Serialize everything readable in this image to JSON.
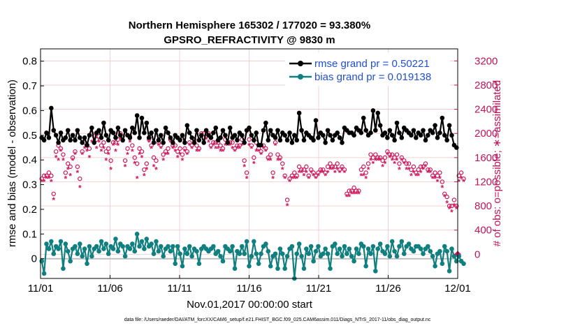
{
  "chart_data": {
    "type": "line",
    "title_line1": "Northern Hemisphere 165302 / 177020 = 93.380%",
    "title_line2": "GPSRO_REFRACTIVITY @ 9830 m",
    "xlabel": "Nov.01,2017 00:00:00 start",
    "ylabel_left": "rmse and bias (model - observation)",
    "ylabel_right": "# of obs: o=possible; ∗=assimilated",
    "footer": "data file: /Users/raeder/DAI/ATM_forcXX/CAM6_setup/f.e21.FHIST_BGC.f09_025.CAM6assim.011/Diags_NTrS_2017-11/obs_diag_output.nc",
    "x_ticks": [
      "11/01",
      "11/06",
      "11/11",
      "11/16",
      "11/21",
      "11/26",
      "12/01"
    ],
    "x_tick_days": [
      0,
      5,
      10,
      15,
      20,
      25,
      30
    ],
    "x_range": [
      0,
      30
    ],
    "ylim_left": [
      -0.08,
      0.85
    ],
    "yticks_left": [
      "0",
      "0.1",
      "0.2",
      "0.3",
      "0.4",
      "0.5",
      "0.6",
      "0.7",
      "0.8"
    ],
    "yticks_left_values": [
      0,
      0.1,
      0.2,
      0.3,
      0.4,
      0.5,
      0.6,
      0.7,
      0.8
    ],
    "ylim_right": [
      -400,
      3400
    ],
    "yticks_right": [
      "0",
      "400",
      "800",
      "1200",
      "1600",
      "2000",
      "2400",
      "2800",
      "3200"
    ],
    "yticks_right_values": [
      0,
      400,
      800,
      1200,
      1600,
      2000,
      2400,
      2800,
      3200
    ],
    "legend": [
      {
        "name": "rmse grand pr = 0.50221",
        "color": "#000000"
      },
      {
        "name": "bias grand pr = 0.019138",
        "color": "#0f7f7f"
      }
    ],
    "colors": {
      "rmse": "#000000",
      "bias": "#0f7f7f",
      "obs": "#d0145a",
      "zero_line": "#bdbdbd"
    },
    "series": [
      {
        "name": "rmse",
        "values": [
          0.49,
          0.48,
          0.51,
          0.49,
          0.61,
          0.52,
          0.5,
          0.47,
          0.51,
          0.48,
          0.49,
          0.52,
          0.48,
          0.5,
          0.48,
          0.52,
          0.49,
          0.47,
          0.49,
          0.46,
          0.5,
          0.53,
          0.47,
          0.51,
          0.52,
          0.49,
          0.55,
          0.5,
          0.48,
          0.52,
          0.51,
          0.49,
          0.53,
          0.5,
          0.48,
          0.52,
          0.5,
          0.49,
          0.53,
          0.51,
          0.58,
          0.49,
          0.57,
          0.51,
          0.55,
          0.49,
          0.51,
          0.47,
          0.52,
          0.48,
          0.5,
          0.47,
          0.53,
          0.51,
          0.49,
          0.47,
          0.5,
          0.49,
          0.48,
          0.5,
          0.47,
          0.54,
          0.51,
          0.49,
          0.47,
          0.52,
          0.48,
          0.5,
          0.47,
          0.52,
          0.5,
          0.49,
          0.51,
          0.53,
          0.48,
          0.49,
          0.52,
          0.5,
          0.47,
          0.53,
          0.49,
          0.5,
          0.48,
          0.51,
          0.5,
          0.47,
          0.52,
          0.53,
          0.5,
          0.48,
          0.51,
          0.46,
          0.46,
          0.52,
          0.55,
          0.48,
          0.52,
          0.5,
          0.49,
          0.52,
          0.48,
          0.51,
          0.5,
          0.48,
          0.51,
          0.47,
          0.5,
          0.48,
          0.59,
          0.52,
          0.48,
          0.51,
          0.5,
          0.49,
          0.48,
          0.56,
          0.49,
          0.51,
          0.5,
          0.47,
          0.52,
          0.5,
          0.48,
          0.5,
          0.51,
          0.49,
          0.47,
          0.53,
          0.52,
          0.51,
          0.51,
          0.5,
          0.53,
          0.52,
          0.51,
          0.57,
          0.52,
          0.5,
          0.51,
          0.6,
          0.52,
          0.59,
          0.54,
          0.5,
          0.51,
          0.49,
          0.52,
          0.5,
          0.48,
          0.55,
          0.51,
          0.49,
          0.53,
          0.52,
          0.51,
          0.5,
          0.52,
          0.49,
          0.51,
          0.5,
          0.52,
          0.48,
          0.5,
          0.52,
          0.51,
          0.54,
          0.49,
          0.51,
          0.57,
          0.5,
          0.48,
          0.54,
          0.5,
          0.46,
          0.45
        ]
      },
      {
        "name": "bias",
        "values": [
          -0.01,
          -0.06,
          0.06,
          0.04,
          0.07,
          0.02,
          0.05,
          0.04,
          0.07,
          -0.04,
          0.06,
          0.03,
          -0.01,
          0.04,
          0.05,
          0.02,
          0.06,
          0.01,
          0.04,
          -0.02,
          0.05,
          0.01,
          0.04,
          0.05,
          0.03,
          0.07,
          0.04,
          0.06,
          0.02,
          0.05,
          0.04,
          0.08,
          0.03,
          0.06,
          0.05,
          0.01,
          0.05,
          0.04,
          0.06,
          0.03,
          0.1,
          0.05,
          0.07,
          0.04,
          0.08,
          0.05,
          0.06,
          0.02,
          0.07,
          0.03,
          0.05,
          0.01,
          0.04,
          0.05,
          0.03,
          0.05,
          -0.02,
          0.05,
          0.02,
          -0.03,
          0.04,
          0.02,
          0.05,
          0.01,
          0.04,
          0.03,
          -0.02,
          0.04,
          0.05,
          0.04,
          0.03,
          0.04,
          0.05,
          0.02,
          0.03,
          0.01,
          -0.01,
          0.05,
          0.04,
          0.03,
          0.05,
          -0.04,
          0.03,
          0.02,
          0.05,
          0.02,
          0.07,
          -0.03,
          0.01,
          0.07,
          0.02,
          -0.02,
          0.02,
          0.05,
          0.06,
          0.03,
          -0.03,
          0.01,
          0.02,
          -0.04,
          0.04,
          0.02,
          -0.04,
          0.01,
          0.04,
          0.05,
          -0.08,
          0.02,
          0.06,
          0.01,
          -0.04,
          0.04,
          0.02,
          0.05,
          -0.01,
          0.03,
          0.05,
          0.01,
          0.02,
          0.04,
          0.02,
          -0.04,
          0.05,
          0.06,
          0.02,
          0.04,
          0.01,
          0.05,
          0.02,
          0.04,
          0.01,
          -0.01,
          0.04,
          0.02,
          0.06,
          0.05,
          -0.03,
          0.04,
          0.02,
          0.05,
          -0.05,
          0.04,
          0.06,
          0.03,
          0.02,
          0.05,
          0.01,
          0.07,
          0.03,
          0.01,
          0.05,
          0.07,
          0.02,
          0.05,
          0.06,
          0.04,
          0.03,
          0.05,
          0.05,
          0.04,
          0.02,
          0.04,
          0.05,
          0.03,
          0.01,
          -0.03,
          0.02,
          0.03,
          -0.02,
          0.05,
          0.03,
          -0.05,
          0.04,
          0.01,
          -0.01,
          0.01,
          -0.01,
          -0.02
        ]
      },
      {
        "name": "obs possible",
        "values": [
          1250,
          1300,
          1300,
          1350,
          1300,
          1000,
          1700,
          1800,
          1750,
          1650,
          1350,
          1500,
          1450,
          1600,
          1700,
          1450,
          1250,
          1700,
          1850,
          1800,
          1750,
          2000,
          1950,
          1900,
          1950,
          1800,
          1850,
          1700,
          1750,
          1550,
          1850,
          1850,
          1900,
          2000,
          1950,
          1550,
          1750,
          1950,
          1800,
          1600,
          1500,
          1750,
          1700,
          1400,
          1500,
          1900,
          1800,
          1600,
          1550,
          1850,
          1800,
          1650,
          1700,
          1750,
          1900,
          1800,
          1800,
          1700,
          1750,
          1650,
          1750,
          1700,
          1850,
          1800,
          1900,
          1800,
          1750,
          2000,
          2000,
          1950,
          2000,
          1800,
          1850,
          1850,
          1850,
          1800,
          1750,
          1900,
          1850,
          1850,
          1850,
          1750,
          1800,
          1800,
          1900,
          1550,
          1350,
          1900,
          1800,
          1600,
          1850,
          1750,
          1700,
          1800,
          1750,
          1600,
          1650,
          1350,
          1850,
          1650,
          1600,
          1500,
          1300,
          900,
          1250,
          1300,
          1350,
          1300,
          1450,
          1400,
          1400,
          1450,
          1300,
          1400,
          1350,
          1300,
          1350,
          1400,
          1400,
          1350,
          1450,
          1500,
          1450,
          1450,
          1500,
          1400,
          1450,
          1400,
          1000,
          1050,
          1050,
          1100,
          1050,
          1050,
          1400,
          1450,
          1350,
          1500,
          1650,
          1600,
          1650,
          1600,
          1600,
          1550,
          1600,
          1700,
          1650,
          1650,
          1600,
          1650,
          1500,
          1600,
          1550,
          1500,
          1500,
          1400,
          1450,
          1350,
          1400,
          1450,
          1450,
          1500,
          1400,
          1400,
          1300,
          1350,
          1300,
          1350,
          1200,
          1000,
          950,
          800,
          800,
          900,
          800,
          1300,
          1350,
          1250
        ]
      },
      {
        "name": "obs assimilated",
        "values": [
          1200,
          1200,
          1250,
          1250,
          1200,
          900,
          1600,
          1550,
          1700,
          1550,
          1250,
          1400,
          1300,
          1550,
          1650,
          1350,
          1100,
          1650,
          1750,
          1700,
          1600,
          1850,
          1850,
          1750,
          1850,
          1700,
          1750,
          1550,
          1650,
          1400,
          1800,
          1700,
          1800,
          1900,
          1850,
          1450,
          1650,
          1850,
          1700,
          1500,
          1250,
          1650,
          1600,
          1300,
          1400,
          1850,
          1750,
          1450,
          1400,
          1800,
          1750,
          1550,
          1650,
          1650,
          1850,
          1750,
          1700,
          1600,
          1650,
          1550,
          1700,
          1650,
          1800,
          1750,
          1850,
          1700,
          1700,
          1950,
          1850,
          1900,
          1850,
          1750,
          1800,
          1750,
          1750,
          1700,
          1700,
          1800,
          1800,
          1800,
          1750,
          1700,
          1750,
          1750,
          1800,
          1450,
          1250,
          1800,
          1750,
          1500,
          1700,
          1700,
          1650,
          1750,
          1700,
          1550,
          1550,
          1250,
          1800,
          1550,
          1550,
          1400,
          1250,
          800,
          1200,
          1250,
          1250,
          1250,
          1350,
          1350,
          1300,
          1350,
          1250,
          1350,
          1300,
          1250,
          1300,
          1350,
          1350,
          1300,
          1350,
          1400,
          1400,
          1350,
          1400,
          1350,
          1400,
          1350,
          950,
          950,
          1000,
          1000,
          1000,
          1000,
          1300,
          1300,
          1250,
          1400,
          1550,
          1500,
          1550,
          1550,
          1550,
          1450,
          1500,
          1650,
          1600,
          1550,
          1500,
          1550,
          1400,
          1550,
          1500,
          1400,
          1400,
          1300,
          1350,
          1300,
          1300,
          1350,
          1400,
          1450,
          1350,
          1350,
          1250,
          1250,
          1200,
          1250,
          1100,
          950,
          850,
          750,
          700,
          800,
          750,
          1200,
          1250,
          1200
        ]
      }
    ]
  }
}
